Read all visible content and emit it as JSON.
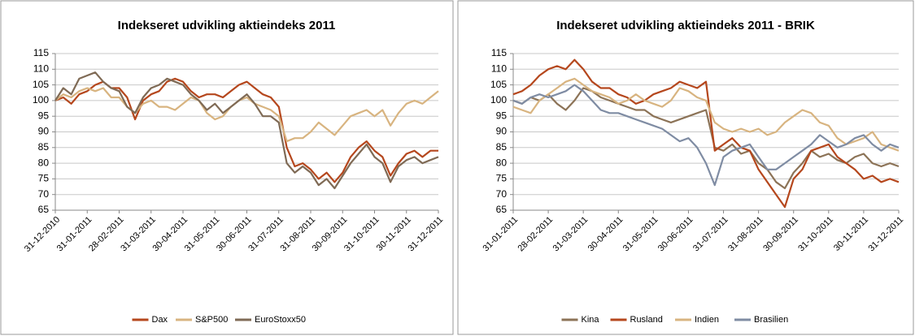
{
  "chart_data": [
    {
      "type": "line",
      "title": "Indekseret udvikling aktieindeks 2011",
      "categories": [
        "31-12-2010",
        null,
        null,
        null,
        "31-01-2011",
        null,
        null,
        null,
        "28-02-2011",
        null,
        null,
        null,
        "31-03-2011",
        null,
        null,
        null,
        "30-04-2011",
        null,
        null,
        null,
        "31-05-2011",
        null,
        null,
        null,
        "30-06-2011",
        null,
        null,
        null,
        "31-07-2011",
        null,
        null,
        null,
        "31-08-2011",
        null,
        null,
        null,
        "30-09-2011",
        null,
        null,
        null,
        "31-10-2011",
        null,
        null,
        null,
        "30-11-2011",
        null,
        null,
        null,
        "31-12-2011"
      ],
      "series": [
        {
          "name": "Dax",
          "color": "#b5471d",
          "values": [
            100,
            101,
            99,
            102,
            103,
            105,
            106,
            104,
            104,
            101,
            94,
            100,
            102,
            103,
            106,
            107,
            106,
            103,
            101,
            102,
            102,
            101,
            103,
            105,
            106,
            104,
            102,
            101,
            98,
            85,
            79,
            80,
            78,
            75,
            77,
            74,
            77,
            82,
            85,
            87,
            84,
            82,
            76,
            80,
            83,
            84,
            82,
            84,
            84
          ]
        },
        {
          "name": "S&P500",
          "color": "#d8b480",
          "values": [
            100,
            102,
            101,
            103,
            104,
            103,
            104,
            101,
            101,
            98,
            96,
            99,
            100,
            98,
            98,
            97,
            99,
            101,
            100,
            96,
            94,
            95,
            98,
            100,
            101,
            99,
            98,
            97,
            95,
            87,
            88,
            88,
            90,
            93,
            91,
            89,
            92,
            95,
            96,
            97,
            95,
            97,
            92,
            96,
            99,
            100,
            99,
            101,
            103
          ]
        },
        {
          "name": "EuroStoxx50",
          "color": "#7f6a55",
          "values": [
            100,
            104,
            102,
            107,
            108,
            109,
            106,
            104,
            103,
            98,
            96,
            101,
            104,
            105,
            107,
            106,
            105,
            102,
            100,
            97,
            99,
            96,
            98,
            100,
            102,
            99,
            95,
            95,
            93,
            80,
            77,
            79,
            77,
            73,
            75,
            72,
            76,
            80,
            83,
            86,
            82,
            80,
            74,
            79,
            81,
            82,
            80,
            81,
            82
          ]
        }
      ],
      "ylim": [
        65,
        115
      ],
      "yticks": [
        65,
        70,
        75,
        80,
        85,
        90,
        95,
        100,
        105,
        110,
        115
      ],
      "grid": true,
      "legend": "bottom"
    },
    {
      "type": "line",
      "title": "Indekseret udvikling aktieindeks 2011 - BRIK",
      "categories": [
        "31-01-2011",
        null,
        null,
        null,
        "28-02-2011",
        null,
        null,
        null,
        "31-03-2011",
        null,
        null,
        null,
        "30-04-2011",
        null,
        null,
        null,
        "31-05-2011",
        null,
        null,
        null,
        "30-06-2011",
        null,
        null,
        null,
        "31-07-2011",
        null,
        null,
        null,
        "31-08-2011",
        null,
        null,
        null,
        "30-09-2011",
        null,
        null,
        null,
        "31-10-2011",
        null,
        null,
        null,
        "30-11-2011",
        null,
        null,
        null,
        "31-12-2011"
      ],
      "series": [
        {
          "name": "Kina",
          "color": "#8c7357",
          "values": [
            100,
            99,
            101,
            100,
            102,
            99,
            97,
            100,
            104,
            103,
            101,
            100,
            99,
            98,
            97,
            97,
            95,
            94,
            93,
            94,
            95,
            96,
            97,
            85,
            84,
            86,
            83,
            84,
            80,
            78,
            74,
            72,
            77,
            80,
            84,
            82,
            83,
            81,
            80,
            82,
            83,
            80,
            79,
            80,
            79
          ]
        },
        {
          "name": "Rusland",
          "color": "#b5471d",
          "values": [
            102,
            103,
            105,
            108,
            110,
            111,
            110,
            113,
            110,
            106,
            104,
            104,
            102,
            101,
            99,
            100,
            102,
            103,
            104,
            106,
            105,
            104,
            106,
            84,
            86,
            88,
            85,
            84,
            78,
            74,
            70,
            66,
            75,
            78,
            84,
            85,
            86,
            82,
            80,
            78,
            75,
            76,
            74,
            75,
            74
          ]
        },
        {
          "name": "Indien",
          "color": "#d8b480",
          "values": [
            98,
            97,
            96,
            100,
            102,
            104,
            106,
            107,
            105,
            103,
            102,
            101,
            99,
            100,
            102,
            100,
            99,
            98,
            100,
            104,
            103,
            101,
            100,
            93,
            91,
            90,
            91,
            90,
            91,
            89,
            90,
            93,
            95,
            97,
            96,
            93,
            92,
            88,
            86,
            87,
            88,
            90,
            86,
            85,
            84
          ]
        },
        {
          "name": "Brasilien",
          "color": "#7f8ca3",
          "values": [
            100,
            99,
            101,
            102,
            101,
            102,
            103,
            105,
            103,
            100,
            97,
            96,
            96,
            95,
            94,
            93,
            92,
            91,
            89,
            87,
            88,
            85,
            80,
            73,
            82,
            84,
            85,
            86,
            82,
            78,
            78,
            80,
            82,
            84,
            86,
            89,
            87,
            85,
            86,
            88,
            89,
            86,
            84,
            86,
            85
          ]
        }
      ],
      "ylim": [
        65,
        115
      ],
      "yticks": [
        65,
        70,
        75,
        80,
        85,
        90,
        95,
        100,
        105,
        110,
        115
      ],
      "grid": true,
      "legend": "bottom"
    }
  ]
}
